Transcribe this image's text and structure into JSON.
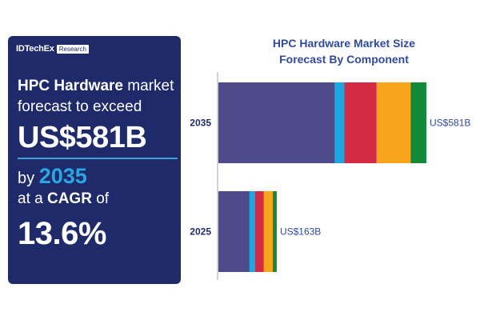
{
  "brand": {
    "name": "IDTechEx",
    "tag": "Research"
  },
  "promo": {
    "headline_bold": "HPC Hardware",
    "headline_rest": " market",
    "headline_line2": "forecast to exceed",
    "value": "US$581B",
    "by_prefix": "by ",
    "year": "2035",
    "cagr_prefix": "at a ",
    "cagr_bold": "CAGR",
    "cagr_suffix": " of",
    "rate": "13.6%"
  },
  "chart_data": {
    "type": "bar",
    "orientation": "horizontal",
    "stacked": true,
    "title_line1": "HPC Hardware Market Size",
    "title_line2": "Forecast By Component",
    "categories": [
      "2035",
      "2025"
    ],
    "totals": [
      581,
      163
    ],
    "total_labels": [
      "US$581B",
      "US$163B"
    ],
    "segment_colors": [
      "#4e4a8c",
      "#1ca7e0",
      "#d42a45",
      "#f8a51b",
      "#138a3a"
    ],
    "segments": [
      [
        325,
        27,
        90,
        95,
        44
      ],
      [
        87,
        15,
        25,
        25,
        11
      ]
    ],
    "unit": "US$B",
    "legend": false,
    "grid": false
  }
}
